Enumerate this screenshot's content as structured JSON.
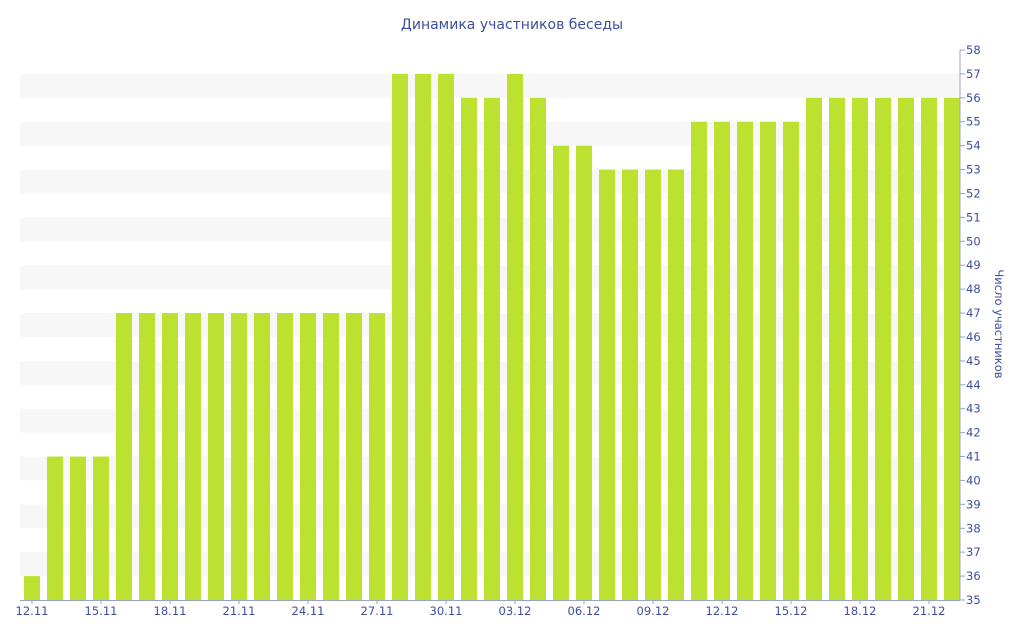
{
  "chart_data": {
    "type": "bar",
    "title": "Динамика участников беседы",
    "ylabel": "Число участников",
    "xlabel": "",
    "ylim": [
      35,
      58
    ],
    "y_axis_position": "right",
    "grid": "alternating horizontal bands",
    "legend": "none",
    "bar_color": "#bde130",
    "text_color": "#3d4f9e",
    "band_color": "#f7f7f7",
    "x_tick_labels": [
      "12.11",
      "15.11",
      "18.11",
      "21.11",
      "24.11",
      "27.11",
      "30.11",
      "03.12",
      "06.12",
      "09.12",
      "12.12",
      "15.12",
      "18.12",
      "21.12"
    ],
    "y_tick_labels": [
      "35",
      "36",
      "37",
      "38",
      "39",
      "40",
      "41",
      "42",
      "43",
      "44",
      "45",
      "46",
      "47",
      "48",
      "49",
      "50",
      "51",
      "52",
      "53",
      "54",
      "55",
      "56",
      "57",
      "58"
    ],
    "categories": [
      "12.11",
      "13.11",
      "14.11",
      "15.11",
      "16.11",
      "17.11",
      "18.11",
      "19.11",
      "20.11",
      "21.11",
      "22.11",
      "23.11",
      "24.11",
      "25.11",
      "26.11",
      "27.11",
      "28.11",
      "29.11",
      "30.11",
      "01.12",
      "02.12",
      "03.12",
      "04.12",
      "05.12",
      "06.12",
      "07.12",
      "08.12",
      "09.12",
      "10.12",
      "11.12",
      "12.12",
      "13.12",
      "14.12",
      "15.12",
      "16.12",
      "17.12",
      "18.12",
      "19.12",
      "20.12",
      "21.12",
      "22.12"
    ],
    "values": [
      36,
      41,
      41,
      41,
      47,
      47,
      47,
      47,
      47,
      47,
      47,
      47,
      47,
      47,
      47,
      47,
      57,
      57,
      57,
      56,
      56,
      57,
      56,
      54,
      54,
      53,
      53,
      53,
      53,
      55,
      55,
      55,
      55,
      55,
      56,
      56,
      56,
      56,
      56,
      56,
      56
    ]
  }
}
